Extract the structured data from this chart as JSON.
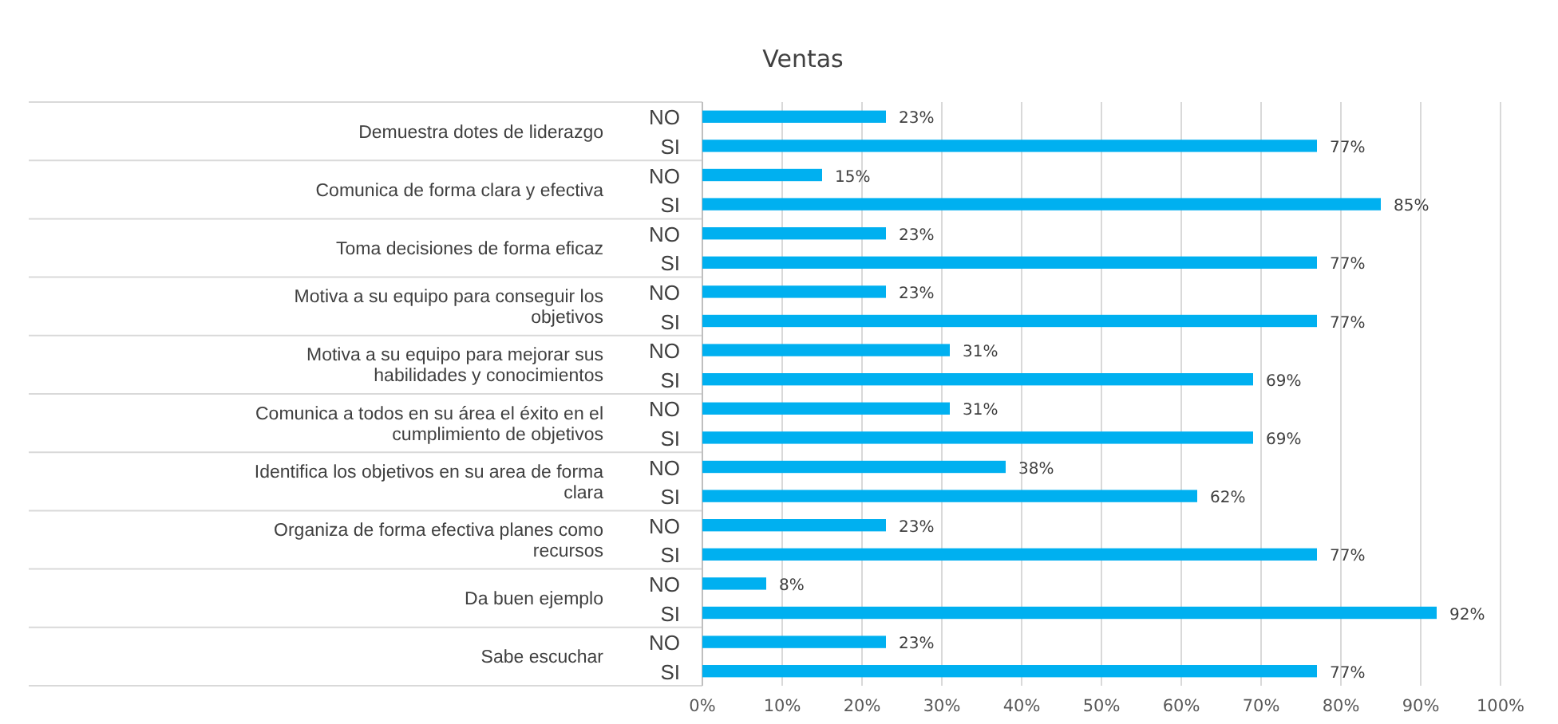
{
  "chart_data": {
    "type": "bar",
    "orientation": "horizontal",
    "title": "Ventas",
    "categories": [
      "NO",
      "SI",
      "NO",
      "SI",
      "NO",
      "SI",
      "NO",
      "SI",
      "NO",
      "SI",
      "NO",
      "SI",
      "NO",
      "SI",
      "NO",
      "SI",
      "NO",
      "SI",
      "NO",
      "SI"
    ],
    "values": [
      23,
      77,
      15,
      85,
      23,
      77,
      23,
      77,
      31,
      69,
      31,
      69,
      38,
      62,
      23,
      77,
      8,
      92,
      23,
      77
    ],
    "value_labels": [
      "23%",
      "77%",
      "15%",
      "85%",
      "23%",
      "77%",
      "23%",
      "77%",
      "31%",
      "69%",
      "31%",
      "69%",
      "38%",
      "62%",
      "23%",
      "77%",
      "8%",
      "92%",
      "23%",
      "77%"
    ],
    "color": "#00b0f0",
    "xlim": [
      0,
      100
    ],
    "xticks": [
      {
        "value": 0,
        "label": "0%"
      },
      {
        "value": 10,
        "label": "10%"
      },
      {
        "value": 20,
        "label": "20%"
      },
      {
        "value": 30,
        "label": "30%"
      },
      {
        "value": 40,
        "label": "40%"
      },
      {
        "value": 50,
        "label": "50%"
      },
      {
        "value": 60,
        "label": "60%"
      },
      {
        "value": 70,
        "label": "70%"
      },
      {
        "value": 80,
        "label": "80%"
      },
      {
        "value": 90,
        "label": "90%"
      },
      {
        "value": 100,
        "label": "100%"
      }
    ],
    "grid": "x",
    "annotations": [
      "Demuestra dotes de liderazgo",
      "Comunica de forma clara y efectiva",
      "Toma decisiones de forma eficaz",
      "Motiva a su equipo para conseguir los objetivos",
      "Motiva a su equipo para mejorar sus habilidades y conocimientos",
      "Comunica a todos en su área el éxito en el cumplimiento de objetivos",
      "Identifica los objetivos en su area de forma clara",
      "Organiza de forma efectiva planes como recursos",
      "Da buen ejemplo",
      "Sabe escuchar"
    ]
  }
}
